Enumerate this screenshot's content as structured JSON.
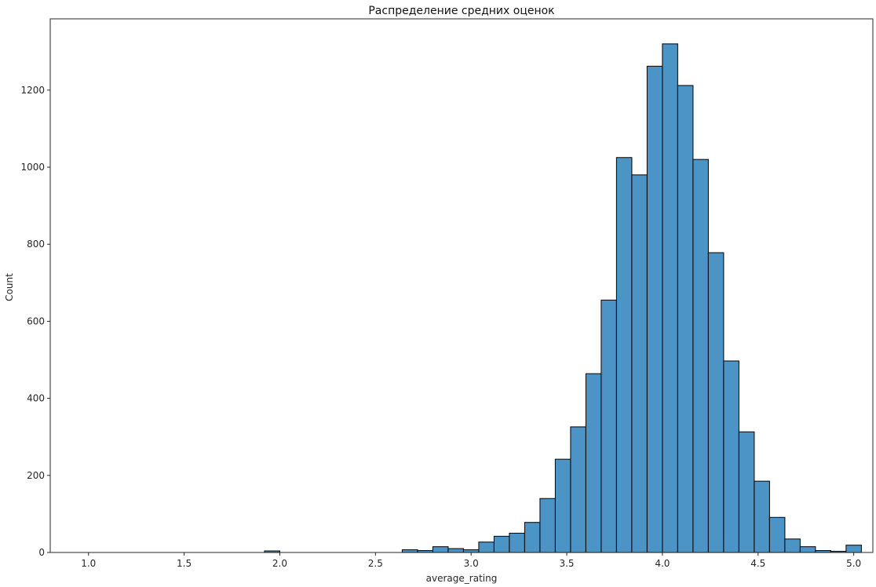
{
  "chart_data": {
    "type": "bar",
    "title": "Распределение средних оценок",
    "xlabel": "average_rating",
    "ylabel": "Count",
    "xlim": [
      0.8,
      5.1
    ],
    "ylim": [
      0,
      1385
    ],
    "xticks": [
      "1.0",
      "1.5",
      "2.0",
      "2.5",
      "3.0",
      "3.5",
      "4.0",
      "4.5",
      "5.0"
    ],
    "yticks": [
      "0",
      "200",
      "400",
      "600",
      "800",
      "1000",
      "1200"
    ],
    "grid": false,
    "bar_color": "#4c93c6",
    "bins": [
      {
        "start": 1.92,
        "end": 2.0,
        "count": 4
      },
      {
        "start": 2.0,
        "end": 2.08,
        "count": 0
      },
      {
        "start": 2.08,
        "end": 2.16,
        "count": 0
      },
      {
        "start": 2.16,
        "end": 2.24,
        "count": 0
      },
      {
        "start": 2.24,
        "end": 2.32,
        "count": 0
      },
      {
        "start": 2.32,
        "end": 2.4,
        "count": 0
      },
      {
        "start": 2.4,
        "end": 2.48,
        "count": 0
      },
      {
        "start": 2.48,
        "end": 2.56,
        "count": 0
      },
      {
        "start": 2.56,
        "end": 2.64,
        "count": 0
      },
      {
        "start": 2.64,
        "end": 2.72,
        "count": 7
      },
      {
        "start": 2.72,
        "end": 2.8,
        "count": 5
      },
      {
        "start": 2.8,
        "end": 2.88,
        "count": 15
      },
      {
        "start": 2.88,
        "end": 2.96,
        "count": 10
      },
      {
        "start": 2.96,
        "end": 3.04,
        "count": 7
      },
      {
        "start": 3.04,
        "end": 3.12,
        "count": 27
      },
      {
        "start": 3.12,
        "end": 3.2,
        "count": 42
      },
      {
        "start": 3.2,
        "end": 3.28,
        "count": 50
      },
      {
        "start": 3.28,
        "end": 3.36,
        "count": 78
      },
      {
        "start": 3.36,
        "end": 3.44,
        "count": 140
      },
      {
        "start": 3.44,
        "end": 3.52,
        "count": 242
      },
      {
        "start": 3.52,
        "end": 3.6,
        "count": 326
      },
      {
        "start": 3.6,
        "end": 3.68,
        "count": 464
      },
      {
        "start": 3.68,
        "end": 3.76,
        "count": 655
      },
      {
        "start": 3.76,
        "end": 3.84,
        "count": 1025
      },
      {
        "start": 3.84,
        "end": 3.92,
        "count": 980
      },
      {
        "start": 3.92,
        "end": 4.0,
        "count": 1262
      },
      {
        "start": 4.0,
        "end": 4.08,
        "count": 1320
      },
      {
        "start": 4.08,
        "end": 4.16,
        "count": 1212
      },
      {
        "start": 4.16,
        "end": 4.24,
        "count": 1020
      },
      {
        "start": 4.24,
        "end": 4.32,
        "count": 778
      },
      {
        "start": 4.32,
        "end": 4.4,
        "count": 497
      },
      {
        "start": 4.4,
        "end": 4.48,
        "count": 313
      },
      {
        "start": 4.48,
        "end": 4.56,
        "count": 185
      },
      {
        "start": 4.56,
        "end": 4.64,
        "count": 91
      },
      {
        "start": 4.64,
        "end": 4.72,
        "count": 35
      },
      {
        "start": 4.72,
        "end": 4.8,
        "count": 15
      },
      {
        "start": 4.8,
        "end": 4.88,
        "count": 5
      },
      {
        "start": 4.88,
        "end": 4.96,
        "count": 3
      },
      {
        "start": 4.96,
        "end": 5.04,
        "count": 19
      }
    ]
  }
}
